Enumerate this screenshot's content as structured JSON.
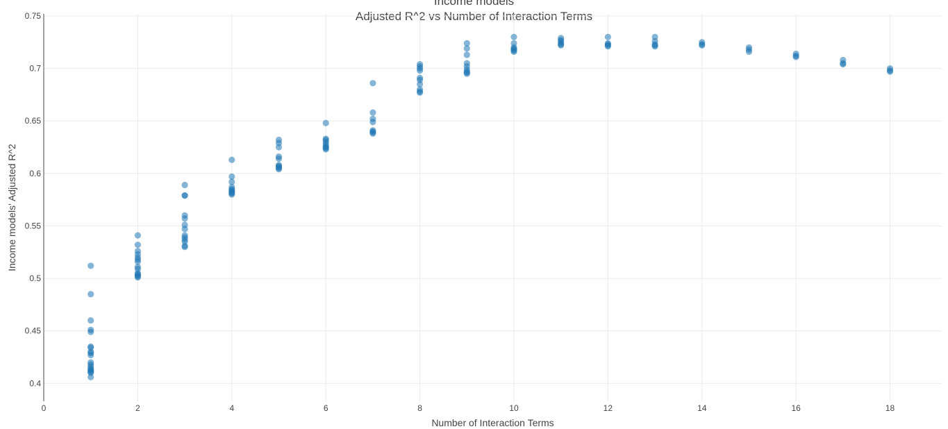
{
  "chart_data": {
    "type": "scatter",
    "title": "Income models",
    "subtitle": "Adjusted R^2 vs Number of Interaction Terms",
    "xlabel": "Number of Interaction Terms",
    "ylabel": "Income models' Adjusted R^2",
    "xlim": [
      0,
      19.1
    ],
    "ylim": [
      0.383,
      0.752
    ],
    "x_ticks": [
      0,
      2,
      4,
      6,
      8,
      10,
      12,
      14,
      16,
      18
    ],
    "y_ticks": [
      0.4,
      0.45,
      0.5,
      0.55,
      0.6,
      0.65,
      0.7,
      0.75
    ],
    "y_tick_labels": [
      "0.4",
      "0.45",
      "0.5",
      "0.55",
      "0.6",
      "0.65",
      "0.7",
      "0.75"
    ],
    "grid": true,
    "legend": "none",
    "marker_color": "#1f77b4",
    "marker_opacity": 0.55,
    "series": [
      {
        "points": [
          [
            1,
            0.512
          ],
          [
            1,
            0.485
          ],
          [
            1,
            0.46
          ],
          [
            1,
            0.451
          ],
          [
            1,
            0.449
          ],
          [
            1,
            0.435
          ],
          [
            1,
            0.434
          ],
          [
            1,
            0.43
          ],
          [
            1,
            0.429
          ],
          [
            1,
            0.427
          ],
          [
            1,
            0.42
          ],
          [
            1,
            0.418
          ],
          [
            1,
            0.416
          ],
          [
            1,
            0.414
          ],
          [
            1,
            0.413
          ],
          [
            1,
            0.412
          ],
          [
            1,
            0.411
          ],
          [
            1,
            0.41
          ],
          [
            1,
            0.406
          ],
          [
            2,
            0.541
          ],
          [
            2,
            0.532
          ],
          [
            2,
            0.526
          ],
          [
            2,
            0.523
          ],
          [
            2,
            0.52
          ],
          [
            2,
            0.518
          ],
          [
            2,
            0.516
          ],
          [
            2,
            0.511
          ],
          [
            2,
            0.509
          ],
          [
            2,
            0.505
          ],
          [
            2,
            0.504
          ],
          [
            2,
            0.503
          ],
          [
            2,
            0.502
          ],
          [
            2,
            0.501
          ],
          [
            3,
            0.589
          ],
          [
            3,
            0.579
          ],
          [
            3,
            0.579
          ],
          [
            3,
            0.56
          ],
          [
            3,
            0.557
          ],
          [
            3,
            0.551
          ],
          [
            3,
            0.547
          ],
          [
            3,
            0.541
          ],
          [
            3,
            0.539
          ],
          [
            3,
            0.537
          ],
          [
            3,
            0.535
          ],
          [
            3,
            0.531
          ],
          [
            3,
            0.53
          ],
          [
            4,
            0.613
          ],
          [
            4,
            0.597
          ],
          [
            4,
            0.592
          ],
          [
            4,
            0.587
          ],
          [
            4,
            0.585
          ],
          [
            4,
            0.584
          ],
          [
            4,
            0.583
          ],
          [
            4,
            0.582
          ],
          [
            4,
            0.581
          ],
          [
            4,
            0.58
          ],
          [
            5,
            0.632
          ],
          [
            5,
            0.629
          ],
          [
            5,
            0.625
          ],
          [
            5,
            0.616
          ],
          [
            5,
            0.614
          ],
          [
            5,
            0.608
          ],
          [
            5,
            0.607
          ],
          [
            5,
            0.606
          ],
          [
            5,
            0.605
          ],
          [
            5,
            0.604
          ],
          [
            6,
            0.648
          ],
          [
            6,
            0.633
          ],
          [
            6,
            0.632
          ],
          [
            6,
            0.63
          ],
          [
            6,
            0.628
          ],
          [
            6,
            0.626
          ],
          [
            6,
            0.625
          ],
          [
            6,
            0.624
          ],
          [
            6,
            0.623
          ],
          [
            7,
            0.686
          ],
          [
            7,
            0.658
          ],
          [
            7,
            0.652
          ],
          [
            7,
            0.649
          ],
          [
            7,
            0.641
          ],
          [
            7,
            0.64
          ],
          [
            7,
            0.639
          ],
          [
            7,
            0.638
          ],
          [
            8,
            0.704
          ],
          [
            8,
            0.702
          ],
          [
            8,
            0.7
          ],
          [
            8,
            0.698
          ],
          [
            8,
            0.691
          ],
          [
            8,
            0.689
          ],
          [
            8,
            0.685
          ],
          [
            8,
            0.68
          ],
          [
            8,
            0.678
          ],
          [
            8,
            0.677
          ],
          [
            9,
            0.724
          ],
          [
            9,
            0.719
          ],
          [
            9,
            0.713
          ],
          [
            9,
            0.705
          ],
          [
            9,
            0.702
          ],
          [
            9,
            0.699
          ],
          [
            9,
            0.697
          ],
          [
            9,
            0.696
          ],
          [
            9,
            0.695
          ],
          [
            10,
            0.73
          ],
          [
            10,
            0.724
          ],
          [
            10,
            0.72
          ],
          [
            10,
            0.719
          ],
          [
            10,
            0.718
          ],
          [
            10,
            0.717
          ],
          [
            10,
            0.716
          ],
          [
            11,
            0.729
          ],
          [
            11,
            0.727
          ],
          [
            11,
            0.726
          ],
          [
            11,
            0.724
          ],
          [
            11,
            0.723
          ],
          [
            11,
            0.722
          ],
          [
            12,
            0.73
          ],
          [
            12,
            0.724
          ],
          [
            12,
            0.723
          ],
          [
            12,
            0.722
          ],
          [
            12,
            0.721
          ],
          [
            13,
            0.73
          ],
          [
            13,
            0.726
          ],
          [
            13,
            0.723
          ],
          [
            13,
            0.722
          ],
          [
            13,
            0.721
          ],
          [
            14,
            0.725
          ],
          [
            14,
            0.723
          ],
          [
            14,
            0.722
          ],
          [
            15,
            0.72
          ],
          [
            15,
            0.718
          ],
          [
            15,
            0.716
          ],
          [
            16,
            0.714
          ],
          [
            16,
            0.712
          ],
          [
            16,
            0.711
          ],
          [
            17,
            0.708
          ],
          [
            17,
            0.705
          ],
          [
            17,
            0.704
          ],
          [
            18,
            0.7
          ],
          [
            18,
            0.698
          ],
          [
            18,
            0.697
          ]
        ]
      }
    ]
  }
}
